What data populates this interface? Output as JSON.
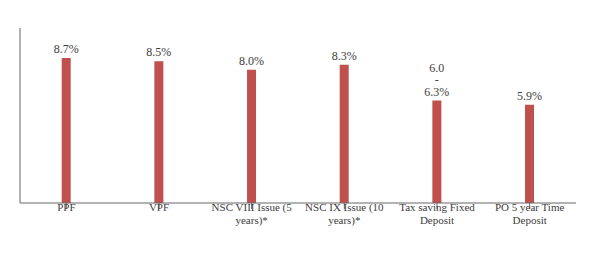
{
  "chart_data": {
    "type": "bar",
    "categories": [
      "PPF",
      "VPF",
      "NSC VIII Issue (5\nyears)*",
      "NSC IX Issue (10\nyears)*",
      "Tax saving Fixed\nDeposit",
      "PO 5 year Time\nDeposit"
    ],
    "values": [
      8.7,
      8.5,
      8.0,
      8.3,
      6.15,
      5.9
    ],
    "value_labels": [
      "8.7%",
      "8.5%",
      "8.0%",
      "8.3%",
      "6.0 - 6.3%",
      "5.9%"
    ],
    "color": "#c0504d",
    "ylim": [
      0,
      10.5
    ],
    "grid": false,
    "data_labels": true,
    "tick_labels": "x"
  }
}
